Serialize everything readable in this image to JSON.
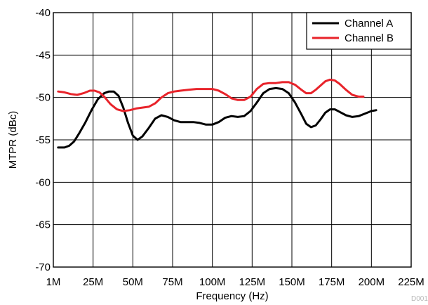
{
  "chart_data": {
    "type": "line",
    "xlabel": "Frequency (Hz)",
    "ylabel": "MTPR (dBc)",
    "x_ticks": [
      {
        "value": 0,
        "label": "1M"
      },
      {
        "value": 25,
        "label": "25M"
      },
      {
        "value": 50,
        "label": "50M"
      },
      {
        "value": 75,
        "label": "75M"
      },
      {
        "value": 100,
        "label": "100M"
      },
      {
        "value": 125,
        "label": "125M"
      },
      {
        "value": 150,
        "label": "150M"
      },
      {
        "value": 175,
        "label": "175M"
      },
      {
        "value": 200,
        "label": "200M"
      },
      {
        "value": 225,
        "label": "225M"
      }
    ],
    "y_ticks": [
      {
        "value": -40,
        "label": "-40"
      },
      {
        "value": -45,
        "label": "-45"
      },
      {
        "value": -50,
        "label": "-50"
      },
      {
        "value": -55,
        "label": "-55"
      },
      {
        "value": -60,
        "label": "-60"
      },
      {
        "value": -65,
        "label": "-65"
      },
      {
        "value": -70,
        "label": "-70"
      }
    ],
    "xlim": [
      0,
      225
    ],
    "ylim": [
      -70,
      -40
    ],
    "grid": true,
    "legend_position": "top-right",
    "series": [
      {
        "name": "Channel A",
        "color": "#000000",
        "points": [
          [
            3,
            -55.9
          ],
          [
            7,
            -55.9
          ],
          [
            10,
            -55.7
          ],
          [
            13,
            -55.2
          ],
          [
            16,
            -54.3
          ],
          [
            20,
            -53.0
          ],
          [
            24,
            -51.5
          ],
          [
            28,
            -50.2
          ],
          [
            32,
            -49.5
          ],
          [
            35,
            -49.3
          ],
          [
            38,
            -49.3
          ],
          [
            41,
            -49.8
          ],
          [
            44,
            -51.2
          ],
          [
            47,
            -53.0
          ],
          [
            50,
            -54.5
          ],
          [
            53,
            -55.0
          ],
          [
            56,
            -54.6
          ],
          [
            60,
            -53.6
          ],
          [
            64,
            -52.5
          ],
          [
            68,
            -52.1
          ],
          [
            72,
            -52.3
          ],
          [
            76,
            -52.7
          ],
          [
            80,
            -52.9
          ],
          [
            84,
            -52.9
          ],
          [
            88,
            -52.9
          ],
          [
            92,
            -53.0
          ],
          [
            96,
            -53.2
          ],
          [
            100,
            -53.2
          ],
          [
            104,
            -52.9
          ],
          [
            108,
            -52.4
          ],
          [
            112,
            -52.2
          ],
          [
            116,
            -52.3
          ],
          [
            120,
            -52.2
          ],
          [
            124,
            -51.6
          ],
          [
            128,
            -50.6
          ],
          [
            132,
            -49.5
          ],
          [
            136,
            -49.0
          ],
          [
            140,
            -48.9
          ],
          [
            144,
            -49.0
          ],
          [
            148,
            -49.5
          ],
          [
            152,
            -50.6
          ],
          [
            156,
            -52.0
          ],
          [
            159,
            -53.1
          ],
          [
            162,
            -53.5
          ],
          [
            165,
            -53.3
          ],
          [
            168,
            -52.6
          ],
          [
            171,
            -51.8
          ],
          [
            174,
            -51.4
          ],
          [
            177,
            -51.4
          ],
          [
            180,
            -51.7
          ],
          [
            184,
            -52.1
          ],
          [
            188,
            -52.3
          ],
          [
            192,
            -52.2
          ],
          [
            196,
            -51.9
          ],
          [
            200,
            -51.6
          ],
          [
            203,
            -51.5
          ]
        ]
      },
      {
        "name": "Channel B",
        "color": "#e8232a",
        "points": [
          [
            3,
            -49.3
          ],
          [
            7,
            -49.4
          ],
          [
            11,
            -49.6
          ],
          [
            15,
            -49.7
          ],
          [
            19,
            -49.5
          ],
          [
            23,
            -49.2
          ],
          [
            26,
            -49.2
          ],
          [
            29,
            -49.4
          ],
          [
            32,
            -49.9
          ],
          [
            36,
            -50.8
          ],
          [
            40,
            -51.4
          ],
          [
            44,
            -51.6
          ],
          [
            48,
            -51.5
          ],
          [
            52,
            -51.3
          ],
          [
            56,
            -51.2
          ],
          [
            60,
            -51.1
          ],
          [
            64,
            -50.7
          ],
          [
            68,
            -50.0
          ],
          [
            72,
            -49.5
          ],
          [
            76,
            -49.3
          ],
          [
            80,
            -49.2
          ],
          [
            85,
            -49.1
          ],
          [
            90,
            -49.0
          ],
          [
            95,
            -49.0
          ],
          [
            100,
            -49.0
          ],
          [
            104,
            -49.2
          ],
          [
            108,
            -49.6
          ],
          [
            112,
            -50.1
          ],
          [
            116,
            -50.3
          ],
          [
            120,
            -50.3
          ],
          [
            124,
            -49.9
          ],
          [
            128,
            -49.0
          ],
          [
            132,
            -48.4
          ],
          [
            136,
            -48.3
          ],
          [
            140,
            -48.3
          ],
          [
            144,
            -48.2
          ],
          [
            148,
            -48.2
          ],
          [
            152,
            -48.5
          ],
          [
            156,
            -49.1
          ],
          [
            159,
            -49.5
          ],
          [
            162,
            -49.5
          ],
          [
            165,
            -49.1
          ],
          [
            168,
            -48.6
          ],
          [
            171,
            -48.1
          ],
          [
            174,
            -47.9
          ],
          [
            177,
            -48.0
          ],
          [
            180,
            -48.4
          ],
          [
            184,
            -49.1
          ],
          [
            188,
            -49.7
          ],
          [
            192,
            -49.9
          ],
          [
            195,
            -49.9
          ]
        ]
      }
    ],
    "annotation": "D001"
  }
}
